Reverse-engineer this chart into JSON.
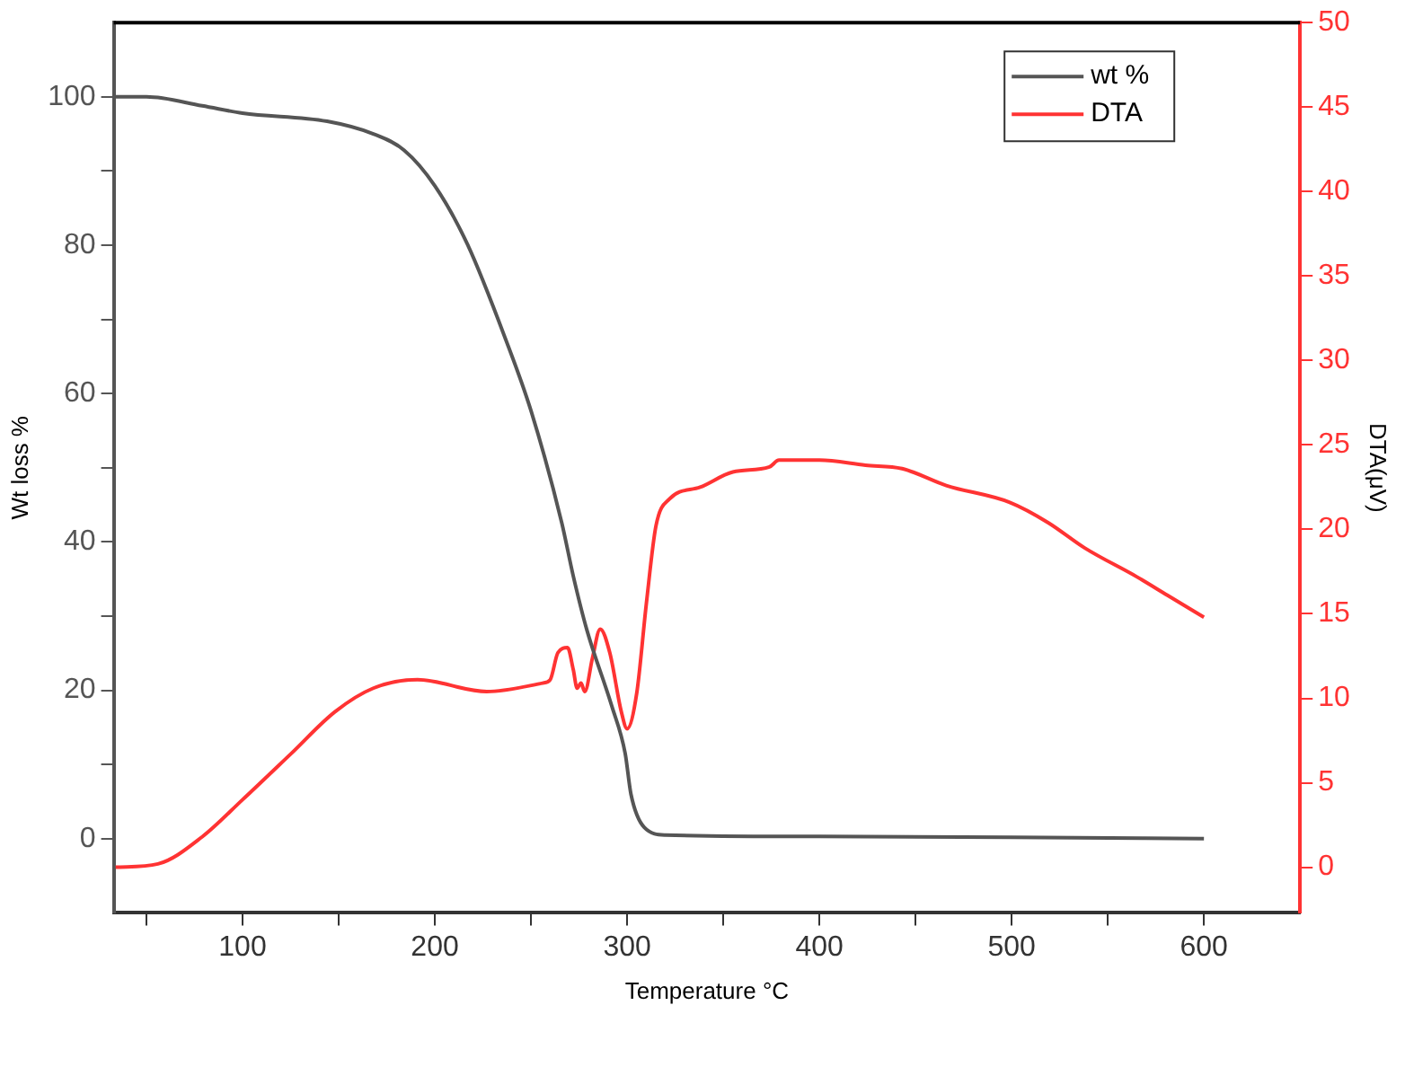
{
  "chart_data": {
    "type": "line",
    "xlabel": "Temperature °C",
    "ylabel": "Wt loss %",
    "y2label": "DTA(μV)",
    "xlim": [
      33,
      650
    ],
    "xticks": [
      {
        "value": 50,
        "label": null
      },
      100,
      {
        "value": 150,
        "label": null
      },
      200,
      {
        "value": 250,
        "label": null
      },
      300,
      {
        "value": 350,
        "label": null
      },
      400,
      {
        "value": 450,
        "label": null
      },
      500,
      {
        "value": 550,
        "label": null
      },
      600
    ],
    "ylim": [
      -10,
      110
    ],
    "yticks": [
      0,
      {
        "value": 10,
        "label": null
      },
      20,
      {
        "value": 30,
        "label": null
      },
      40,
      {
        "value": 50,
        "label": null
      },
      60,
      {
        "value": 70,
        "label": null
      },
      80,
      {
        "value": 90,
        "label": null
      },
      100
    ],
    "y2lim": [
      -2.7,
      50
    ],
    "y2ticks": [
      0,
      5,
      10,
      15,
      20,
      25,
      30,
      35,
      40,
      45,
      50
    ],
    "legend": "top right",
    "grid": false,
    "marker": "none",
    "line_style": "solid",
    "series": [
      {
        "name": "wt %",
        "color": "#555555",
        "x": [
          34,
          50,
          79,
          100,
          144,
          168,
          184,
          200,
          217,
          237,
          250,
          266,
          272,
          279,
          292,
          299,
          302,
          309,
          320,
          400,
          500,
          600
        ],
        "values": [
          100,
          100,
          98.8,
          97.8,
          96.7,
          95,
          92.8,
          88,
          80.1,
          67.2,
          57.7,
          42.6,
          35.4,
          28.2,
          17.9,
          11.5,
          6,
          1.5,
          0.5,
          0.3,
          0.2,
          0
        ]
      },
      {
        "name": "DTA",
        "color": "#ff3333",
        "axis": "y2",
        "x": [
          34,
          56,
          79,
          100,
          125,
          148,
          168,
          191,
          227,
          256,
          260,
          264,
          269,
          272,
          274,
          276,
          278,
          282,
          286,
          291,
          297,
          300,
          305,
          310,
          315,
          322,
          338,
          355,
          374,
          379,
          400,
          424,
          443,
          466,
          499,
          519,
          538,
          565,
          581,
          600
        ],
        "values": [
          0,
          0.2,
          1.8,
          4.0,
          6.7,
          9.2,
          10.6,
          11.1,
          10.4,
          10.9,
          11.1,
          12.7,
          13.0,
          11.7,
          10.6,
          10.9,
          10.4,
          12.4,
          14.1,
          12.7,
          9.2,
          8.2,
          10.3,
          15.6,
          20.2,
          21.8,
          22.5,
          23.4,
          23.7,
          24.1,
          24.1,
          23.8,
          23.6,
          22.6,
          21.6,
          20.4,
          18.9,
          17.2,
          16.1,
          14.8
        ]
      }
    ]
  }
}
